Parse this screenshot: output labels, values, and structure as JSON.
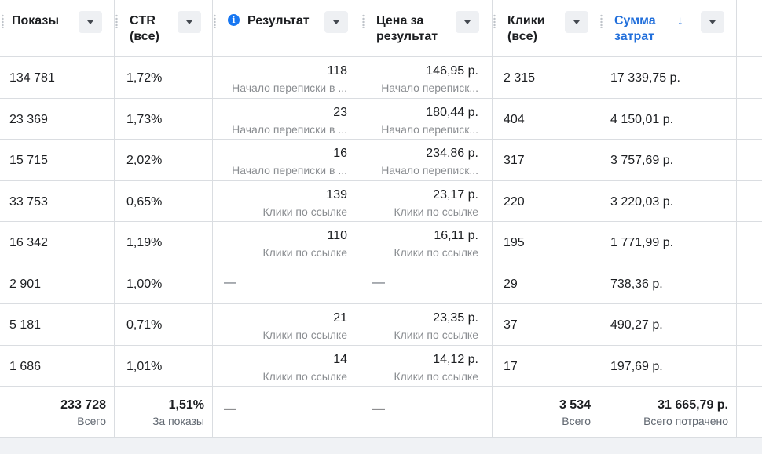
{
  "columns": [
    {
      "title": "Показы"
    },
    {
      "title": "CTR\n(все)"
    },
    {
      "title": "Результат"
    },
    {
      "title": "Цена за\nрезультат"
    },
    {
      "title": "Клики\n(все)"
    },
    {
      "title": "Сумма\nзатрат",
      "sort_arrow": "↓"
    }
  ],
  "rows": [
    {
      "impressions": "134 781",
      "ctr": "1,72%",
      "result": "118",
      "result_type": "Начало переписки в ...",
      "cost": "146,95 р.",
      "cost_type": "Начало переписк...",
      "clicks": "2 315",
      "spend": "17 339,75 р."
    },
    {
      "impressions": "23 369",
      "ctr": "1,73%",
      "result": "23",
      "result_type": "Начало переписки в ...",
      "cost": "180,44 р.",
      "cost_type": "Начало переписк...",
      "clicks": "404",
      "spend": "4 150,01 р."
    },
    {
      "impressions": "15 715",
      "ctr": "2,02%",
      "result": "16",
      "result_type": "Начало переписки в ...",
      "cost": "234,86 р.",
      "cost_type": "Начало переписк...",
      "clicks": "317",
      "spend": "3 757,69 р."
    },
    {
      "impressions": "33 753",
      "ctr": "0,65%",
      "result": "139",
      "result_type": "Клики по ссылке",
      "cost": "23,17 р.",
      "cost_type": "Клики по ссылке",
      "clicks": "220",
      "spend": "3 220,03 р."
    },
    {
      "impressions": "16 342",
      "ctr": "1,19%",
      "result": "110",
      "result_type": "Клики по ссылке",
      "cost": "16,11 р.",
      "cost_type": "Клики по ссылке",
      "clicks": "195",
      "spend": "1 771,99 р."
    },
    {
      "impressions": "2 901",
      "ctr": "1,00%",
      "result": "—",
      "result_type": "",
      "cost": "—",
      "cost_type": "",
      "clicks": "29",
      "spend": "738,36 р."
    },
    {
      "impressions": "5 181",
      "ctr": "0,71%",
      "result": "21",
      "result_type": "Клики по ссылке",
      "cost": "23,35 р.",
      "cost_type": "Клики по ссылке",
      "clicks": "37",
      "spend": "490,27 р."
    },
    {
      "impressions": "1 686",
      "ctr": "1,01%",
      "result": "14",
      "result_type": "Клики по ссылке",
      "cost": "14,12 р.",
      "cost_type": "Клики по ссылке",
      "clicks": "17",
      "spend": "197,69 р."
    }
  ],
  "totals": {
    "impressions": "233 728",
    "impressions_label": "Всего",
    "ctr": "1,51%",
    "ctr_label": "За показы",
    "result": "—",
    "cost": "—",
    "clicks": "3 534",
    "clicks_label": "Всего",
    "spend": "31 665,79 р.",
    "spend_label": "Всего потрачено"
  },
  "colors": {
    "accent": "#216fdb",
    "info": "#1877f2",
    "border": "#dadde1",
    "muted": "#8a8d91"
  }
}
